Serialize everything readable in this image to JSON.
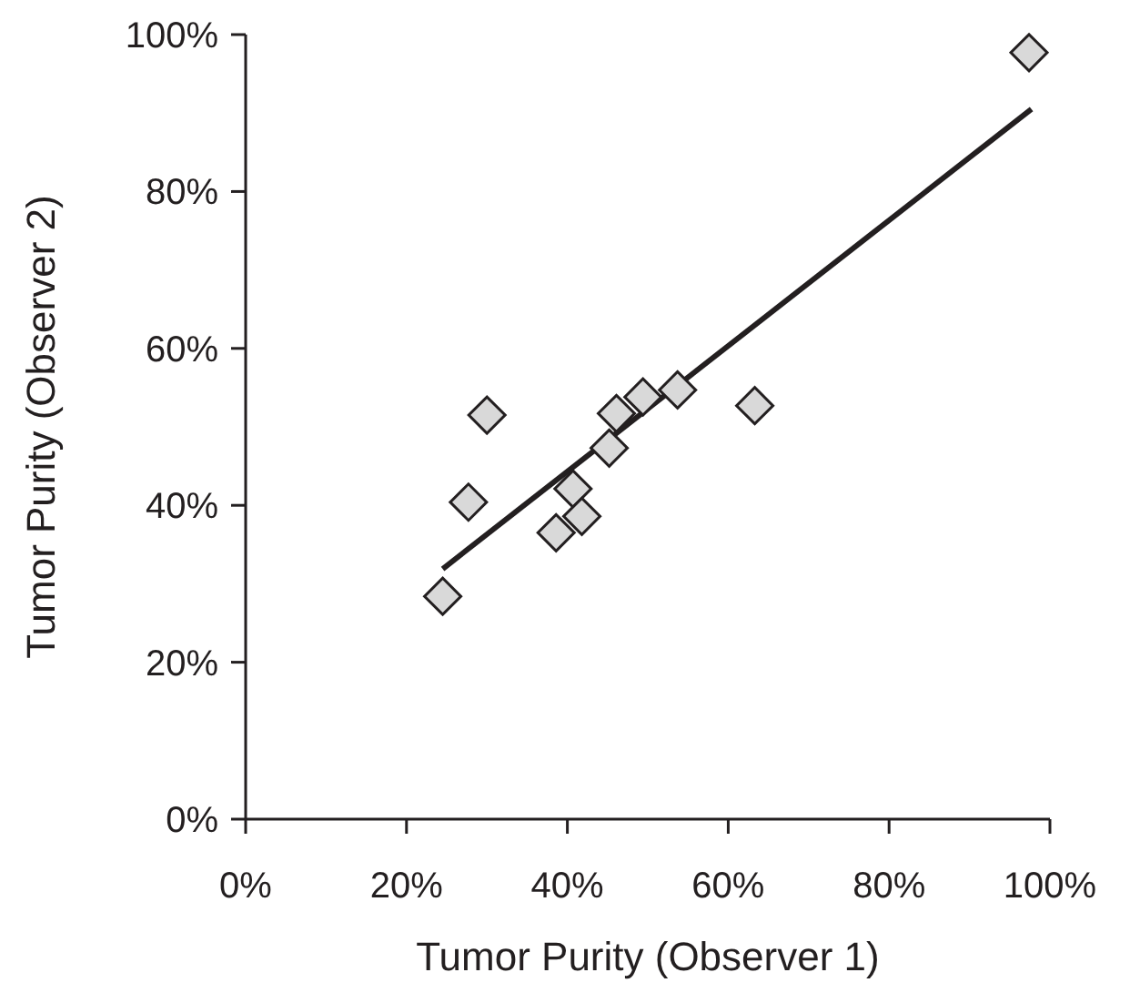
{
  "chart_data": {
    "type": "scatter",
    "xlabel": "Tumor Purity (Observer 1)",
    "ylabel": "Tumor Purity (Observer 2)",
    "xlim": [
      0,
      100
    ],
    "ylim": [
      0,
      100
    ],
    "xticks": [
      {
        "value": 0,
        "label": "0%"
      },
      {
        "value": 20,
        "label": "20%"
      },
      {
        "value": 40,
        "label": "40%"
      },
      {
        "value": 60,
        "label": "60%"
      },
      {
        "value": 80,
        "label": "80%"
      },
      {
        "value": 100,
        "label": "100%"
      }
    ],
    "yticks": [
      {
        "value": 0,
        "label": "0%"
      },
      {
        "value": 20,
        "label": "20%"
      },
      {
        "value": 40,
        "label": "40%"
      },
      {
        "value": 60,
        "label": "60%"
      },
      {
        "value": 80,
        "label": "80%"
      },
      {
        "value": 100,
        "label": "100%"
      }
    ],
    "grid": false,
    "marker": "diamond",
    "series": [
      {
        "color": "#d9d9d9",
        "x": [
          97.4,
          24.5,
          27.7,
          30.0,
          38.6,
          40.7,
          41.8,
          45.2,
          46.1,
          49.4,
          53.7,
          63.3
        ],
        "values": [
          97.7,
          28.4,
          40.4,
          51.5,
          36.5,
          42.1,
          38.6,
          47.3,
          51.7,
          53.8,
          54.7,
          52.7
        ]
      },
      {
        "type": "line",
        "color": "#231f20",
        "x": [
          24.5,
          97.7
        ],
        "values": [
          31.9,
          90.5
        ],
        "marker": "none",
        "line_style": "solid"
      }
    ]
  }
}
